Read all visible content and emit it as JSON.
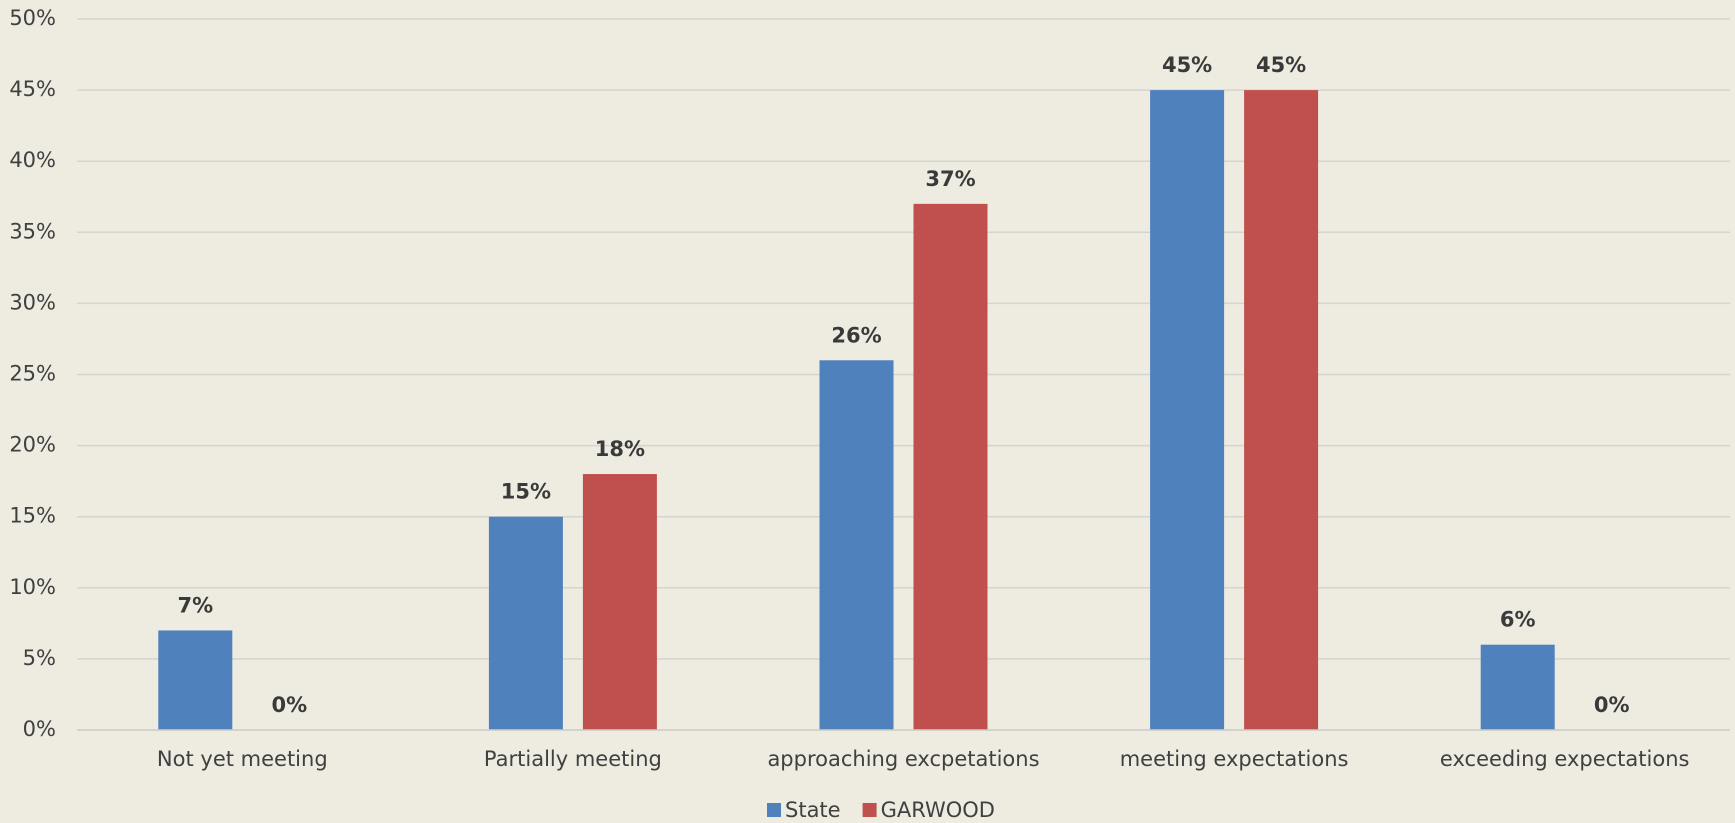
{
  "chart_data": {
    "type": "bar",
    "categories": [
      "Not yet meeting",
      "Partially meeting",
      "approaching excpetations",
      "meeting expectations",
      "exceeding expectations"
    ],
    "series": [
      {
        "name": "State",
        "color": "#4f81bd",
        "values": [
          7,
          15,
          26,
          45,
          6
        ],
        "value_labels": [
          "7%",
          "15%",
          "26%",
          "45%",
          "6%"
        ]
      },
      {
        "name": "GARWOOD",
        "color": "#c0504d",
        "values": [
          0,
          18,
          37,
          45,
          0
        ],
        "value_labels": [
          "0%",
          "18%",
          "37%",
          "45%",
          "0%"
        ]
      }
    ],
    "ylim": [
      0,
      50
    ],
    "yticks": [
      {
        "value": 0,
        "label": "0%"
      },
      {
        "value": 5,
        "label": "5%"
      },
      {
        "value": 10,
        "label": "10%"
      },
      {
        "value": 15,
        "label": "15%"
      },
      {
        "value": 20,
        "label": "20%"
      },
      {
        "value": 25,
        "label": "25%"
      },
      {
        "value": 30,
        "label": "30%"
      },
      {
        "value": 35,
        "label": "35%"
      },
      {
        "value": 40,
        "label": "40%"
      },
      {
        "value": 45,
        "label": "45%"
      },
      {
        "value": 50,
        "label": "50%"
      }
    ],
    "grid": true,
    "legend": "bottom"
  }
}
